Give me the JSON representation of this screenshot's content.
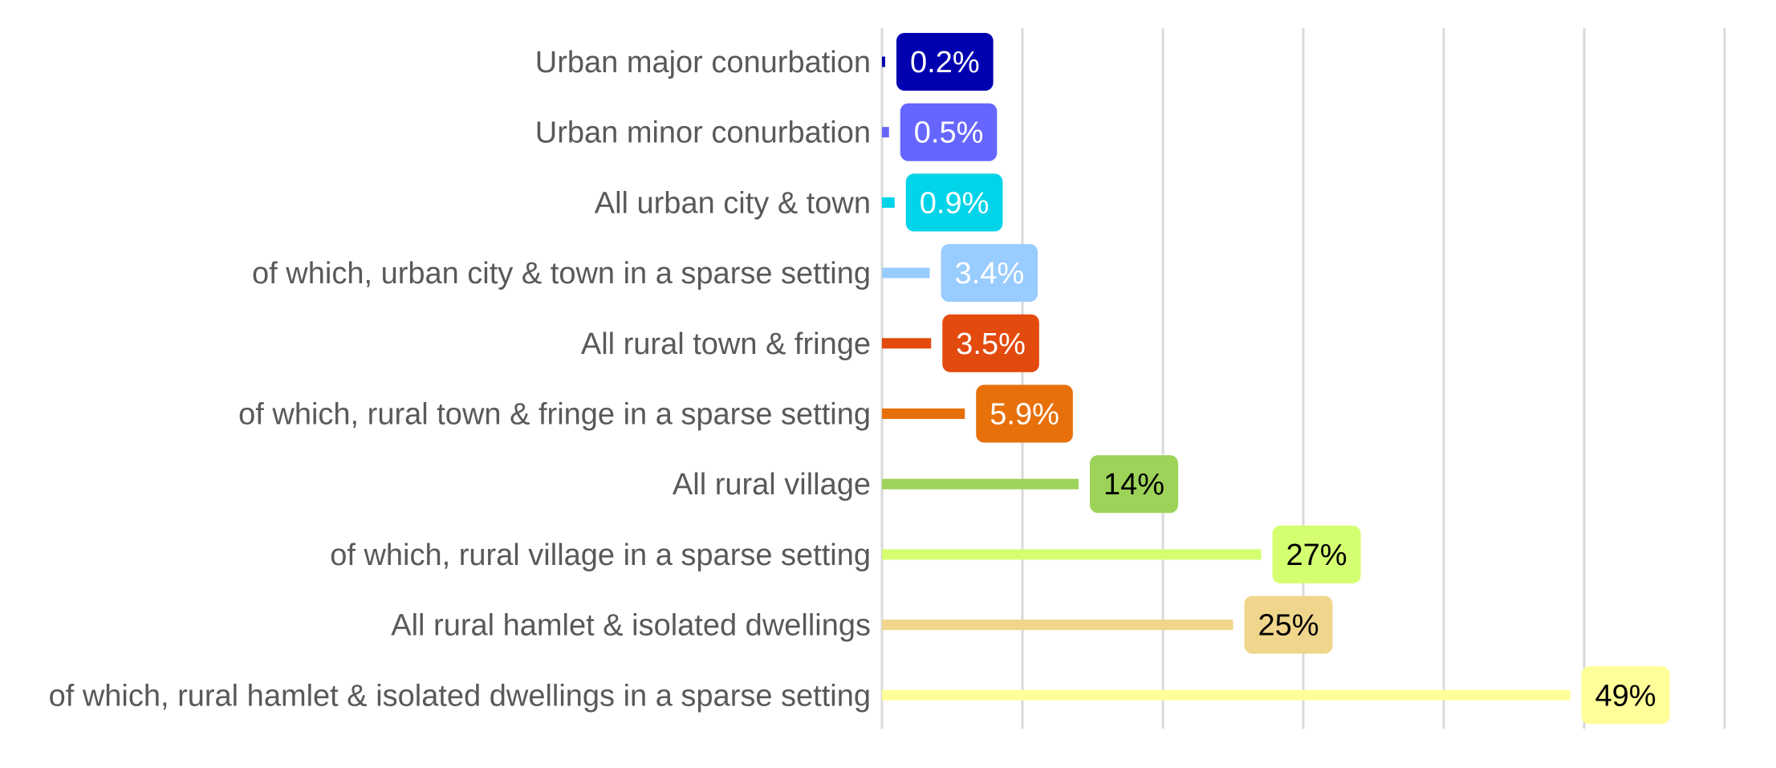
{
  "chart_data": {
    "type": "bar",
    "orientation": "horizontal",
    "categories": [
      "Urban major conurbation",
      "Urban minor conurbation",
      "All urban city & town",
      "of which, urban city & town in a sparse setting",
      "All rural town & fringe",
      "of which, rural town & fringe in a sparse setting",
      "All rural village",
      "of which, rural village in a sparse setting",
      "All rural hamlet & isolated dwellings",
      "of which, rural hamlet & isolated dwellings in a sparse setting"
    ],
    "values": [
      0.2,
      0.5,
      0.9,
      3.4,
      3.5,
      5.9,
      14,
      27,
      25,
      49
    ],
    "value_labels": [
      "0.2%",
      "0.5%",
      "0.9%",
      "3.4%",
      "3.5%",
      "5.9%",
      "14%",
      "27%",
      "25%",
      "49%"
    ],
    "colors": [
      "#0000b0",
      "#6666ff",
      "#00d4e8",
      "#99ccff",
      "#e34a0e",
      "#e8700a",
      "#9ed35a",
      "#d4ff70",
      "#f0d68c",
      "#ffff99"
    ],
    "label_text_colors": [
      "#ffffff",
      "#ffffff",
      "#ffffff",
      "#ffffff",
      "#ffffff",
      "#ffffff",
      "#000000",
      "#000000",
      "#000000",
      "#000000"
    ],
    "xlim": [
      0,
      60
    ],
    "x_gridline_step": 10,
    "grid": true,
    "xlabel": "",
    "ylabel": "",
    "title": ""
  }
}
